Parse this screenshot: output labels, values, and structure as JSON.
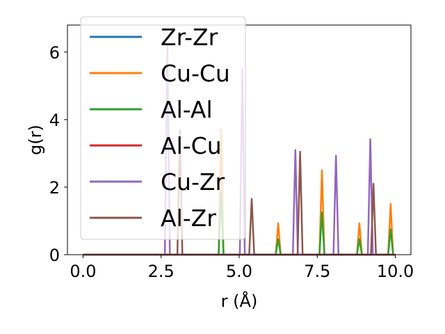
{
  "chart_data": {
    "type": "line",
    "xlabel": "r (Å)",
    "ylabel": "g(r)",
    "xlim": [
      -0.5,
      10.5
    ],
    "ylim": [
      0,
      6.8
    ],
    "xticks": [
      0.0,
      2.5,
      5.0,
      7.5,
      10.0
    ],
    "xtick_labels": [
      "0.0",
      "2.5",
      "5.0",
      "7.5",
      "10.0"
    ],
    "yticks": [
      0,
      2,
      4,
      6
    ],
    "ytick_labels": [
      "0",
      "2",
      "4",
      "6"
    ],
    "grid": false,
    "legend_position": "upper-left",
    "peak_half_width": 0.08,
    "series": [
      {
        "name": "Zr-Zr",
        "color": "#1f77b4",
        "peaks": []
      },
      {
        "name": "Cu-Cu",
        "color": "#ff7f0e",
        "peaks": [
          [
            4.42,
            3.7
          ],
          [
            6.25,
            0.93
          ],
          [
            7.65,
            2.5
          ],
          [
            8.85,
            0.93
          ],
          [
            9.85,
            1.5
          ]
        ]
      },
      {
        "name": "Al-Al",
        "color": "#2ca02c",
        "peaks": [
          [
            4.42,
            1.85
          ],
          [
            6.25,
            0.46
          ],
          [
            7.65,
            1.25
          ],
          [
            8.85,
            0.46
          ],
          [
            9.85,
            0.75
          ]
        ]
      },
      {
        "name": "Al-Cu",
        "color": "#d62728",
        "peaks": []
      },
      {
        "name": "Cu-Zr",
        "color": "#9467bd",
        "peaks": [
          [
            2.7,
            6.25
          ],
          [
            5.1,
            5.5
          ],
          [
            6.8,
            3.1
          ],
          [
            8.1,
            2.93
          ],
          [
            9.2,
            3.42
          ]
        ]
      },
      {
        "name": "Al-Zr",
        "color": "#8c564b",
        "peaks": [
          [
            3.1,
            3.7
          ],
          [
            5.4,
            1.65
          ],
          [
            6.95,
            3.05
          ],
          [
            9.3,
            2.1
          ]
        ]
      }
    ]
  }
}
